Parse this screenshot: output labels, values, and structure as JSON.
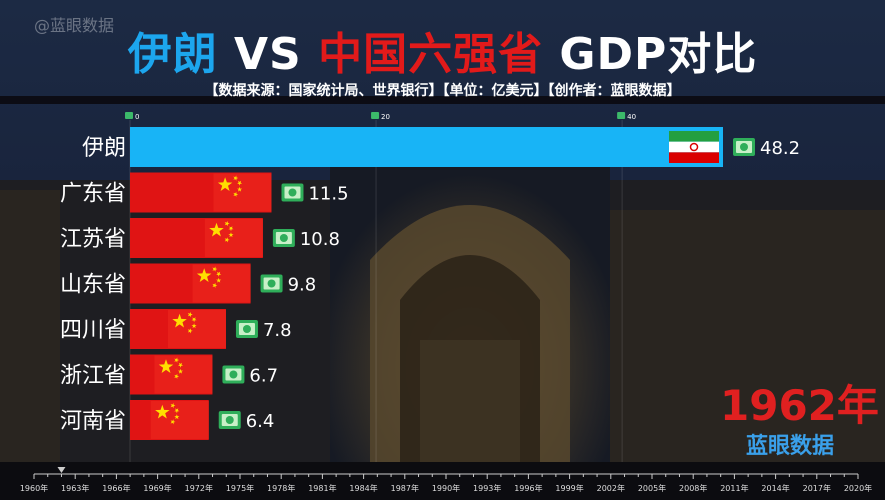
{
  "watermark": "@蓝眼数据",
  "title": {
    "part1": "伊朗",
    "part2": " VS ",
    "part3": "中国六强省",
    "part4": " GDP对比"
  },
  "subtitle": "【数据来源：国家统计局、世界银行】【单位：亿美元】【创作者：蓝眼数据】",
  "year_label": "1962年",
  "brand": "蓝眼数据",
  "colors": {
    "iran_bar": "#18b4f6",
    "china_bar": "#e01414",
    "title_blue": "#1ca6ee",
    "title_red": "#e21a1a",
    "year_red": "#e02020"
  },
  "chart_data": {
    "type": "bar",
    "orientation": "horizontal",
    "categories": [
      "伊朗",
      "广东省",
      "江苏省",
      "山东省",
      "四川省",
      "浙江省",
      "河南省"
    ],
    "values": [
      48.2,
      11.5,
      10.8,
      9.8,
      7.8,
      6.7,
      6.4
    ],
    "value_labels": [
      "48.2",
      "11.5",
      "10.8",
      "9.8",
      "7.8",
      "6.7",
      "6.4"
    ],
    "flags": [
      "iran-flag",
      "china-flag",
      "china-flag",
      "china-flag",
      "china-flag",
      "china-flag",
      "china-flag"
    ],
    "top_axis_ticks": [
      0,
      20,
      40
    ],
    "xlim": [
      0,
      60
    ],
    "unit": "亿美元",
    "timeline": {
      "ticks": [
        "1960年",
        "1963年",
        "1966年",
        "1969年",
        "1972年",
        "1975年",
        "1978年",
        "1981年",
        "1984年",
        "1987年",
        "1990年",
        "1993年",
        "1996年",
        "1999年",
        "2002年",
        "2005年",
        "2008年",
        "2011年",
        "2014年",
        "2017年",
        "2020年"
      ],
      "current": "1962"
    }
  }
}
